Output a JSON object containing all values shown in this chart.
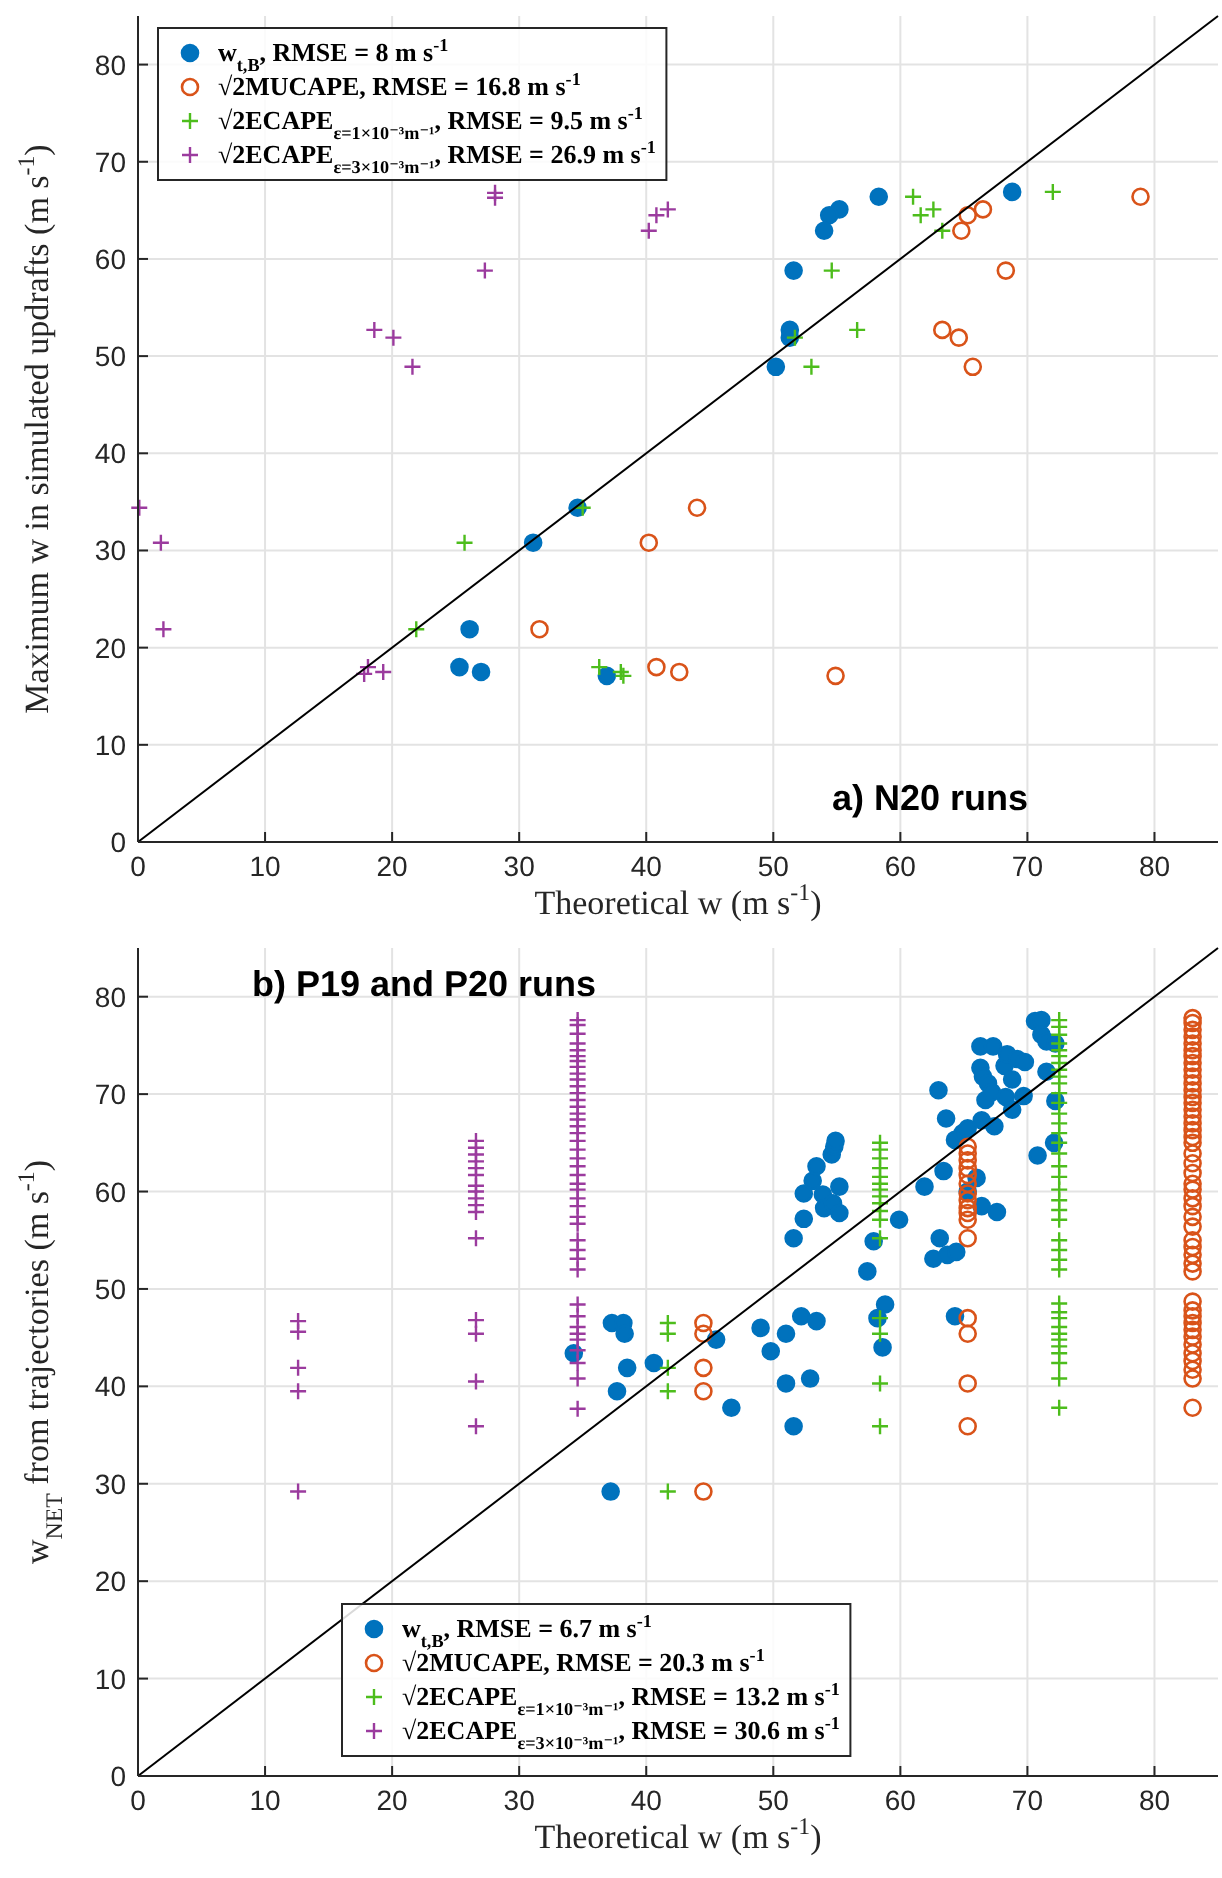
{
  "chart_data": [
    {
      "type": "scatter",
      "xlabel": "Theoretical w (m s$^{-1}$)",
      "ylabel": "Maximum w in simulated updrafts (m s$^{-1}$)",
      "annotations": [
        "a) N20 runs"
      ],
      "xlim": [
        0,
        85
      ],
      "ylim": [
        0,
        85
      ],
      "xticks": [
        0,
        10,
        20,
        30,
        40,
        50,
        60,
        70,
        80
      ],
      "yticks": [
        0,
        10,
        20,
        30,
        40,
        50,
        60,
        70,
        80
      ],
      "grid": true,
      "legend": "top left",
      "series": [
        {
          "name": "w$_{t,B}$, RMSE = 8 m s$^{-1}$",
          "color": "#0072bd",
          "marker": "circle",
          "x": [
            58.3,
            68.8,
            55.2,
            54.4,
            54.0,
            51.6,
            51.3,
            51.3,
            50.2,
            34.6,
            31.1,
            26.1,
            25.3,
            27.0,
            36.9
          ],
          "values": [
            66.4,
            66.9,
            65.1,
            64.5,
            62.9,
            58.8,
            52.7,
            51.9,
            48.9,
            34.4,
            30.8,
            21.9,
            18.0,
            17.5,
            17.1
          ]
        },
        {
          "name": "√2MUCAPE, RMSE = 16.8 m s$^{-1}$",
          "color": "#d95319",
          "marker": "circle-open",
          "x": [
            78.9,
            66.5,
            65.3,
            64.8,
            68.3,
            63.3,
            64.6,
            65.7,
            44.0,
            40.2,
            31.6,
            40.8,
            42.6,
            54.9
          ],
          "values": [
            66.4,
            65.1,
            64.5,
            62.9,
            58.8,
            52.7,
            51.9,
            48.9,
            34.4,
            30.8,
            21.9,
            18.0,
            17.5,
            17.1
          ]
        },
        {
          "name": "√2ECAPE$_{ε=1×10⁻³m⁻¹}$, RMSE = 9.5 m s$^{-1}$",
          "color": "#4dbd1c",
          "marker": "cross",
          "x": [
            61.0,
            72.0,
            62.6,
            61.6,
            63.3,
            54.6,
            56.6,
            51.7,
            53.0,
            35.0,
            25.7,
            21.9,
            36.3,
            38.0,
            38.2
          ],
          "values": [
            66.4,
            66.9,
            65.1,
            64.5,
            62.9,
            58.8,
            52.7,
            51.9,
            48.9,
            34.4,
            30.8,
            21.9,
            18.0,
            17.5,
            17.1
          ]
        },
        {
          "name": "√2ECAPE$_{ε=3×10⁻³m⁻¹}$, RMSE = 26.9 m s$^{-1}$",
          "color": "#9b3b9e",
          "marker": "cross",
          "x": [
            28.1,
            28.1,
            41.7,
            40.8,
            40.2,
            27.3,
            18.6,
            20.1,
            21.6,
            0.1,
            1.8,
            2.0,
            18.1,
            17.8,
            19.3
          ],
          "values": [
            66.8,
            66.3,
            65.1,
            64.5,
            62.9,
            58.8,
            52.7,
            51.9,
            48.9,
            34.4,
            30.8,
            21.9,
            18.0,
            17.3,
            17.5
          ]
        },
        {
          "type": "line",
          "color": "#000000",
          "marker": "none",
          "x": [
            0,
            85
          ],
          "values": [
            0,
            85
          ]
        }
      ]
    },
    {
      "type": "scatter",
      "xlabel": "Theoretical w (m s$^{-1}$)",
      "ylabel": "w$_{NET}$ from trajectories (m s$^{-1}$)",
      "annotations": [
        "b) P19 and P20 runs"
      ],
      "xlim": [
        0,
        85
      ],
      "ylim": [
        0,
        85
      ],
      "xticks": [
        0,
        10,
        20,
        30,
        40,
        50,
        60,
        70,
        80
      ],
      "yticks": [
        0,
        10,
        20,
        30,
        40,
        50,
        60,
        70,
        80
      ],
      "grid": true,
      "legend": "bottom",
      "series": [
        {
          "name": "w$_{t,B}$, RMSE = 6.7 m s$^{-1}$",
          "color": "#0072bd",
          "marker": "circle",
          "x": [
            34.3,
            37.3,
            38.2,
            38.3,
            38.5,
            37.7,
            40.6,
            37.2,
            45.5,
            46.7,
            49.0,
            49.8,
            51.0,
            51.0,
            51.6,
            52.2,
            52.9,
            53.4,
            51.6,
            52.4,
            52.4,
            53.1,
            53.4,
            53.9,
            54.0,
            54.7,
            55.2,
            55.2,
            54.6,
            54.8,
            54.9,
            57.4,
            57.9,
            59.9,
            58.2,
            58.8,
            58.6,
            61.9,
            62.6,
            63.1,
            63.0,
            63.4,
            63.6,
            63.7,
            64.4,
            64.3,
            64.3,
            64.9,
            65.3,
            65.3,
            66.0,
            66.4,
            67.6,
            66.4,
            66.7,
            66.3,
            66.5,
            66.9,
            67.2,
            66.3,
            67.3,
            67.4,
            68.3,
            68.2,
            68.8,
            68.4,
            68.8,
            69.2,
            69.7,
            69.8,
            70.8,
            70.6,
            71.1,
            71.1,
            71.5,
            72.2,
            71.5,
            72.2,
            72.1
          ],
          "values": [
            43.4,
            46.5,
            46.5,
            45.4,
            41.9,
            39.5,
            42.4,
            29.2,
            44.8,
            37.8,
            46.0,
            43.6,
            45.4,
            40.3,
            35.9,
            47.2,
            40.8,
            46.7,
            55.2,
            57.2,
            59.8,
            61.1,
            62.6,
            59.7,
            58.3,
            58.8,
            60.5,
            57.8,
            63.8,
            64.6,
            65.2,
            51.8,
            54.9,
            57.1,
            47.0,
            48.4,
            44.0,
            60.5,
            53.1,
            55.2,
            70.4,
            62.1,
            67.5,
            53.5,
            53.8,
            47.2,
            65.3,
            66.0,
            66.5,
            60.0,
            61.4,
            58.5,
            57.9,
            67.3,
            69.4,
            72.7,
            71.8,
            71.1,
            70.2,
            74.9,
            74.9,
            66.7,
            69.7,
            72.9,
            71.5,
            74.1,
            68.4,
            73.6,
            69.8,
            73.3,
            63.7,
            77.5,
            77.6,
            76.1,
            75.4,
            75.2,
            72.3,
            69.3,
            65.0
          ]
        },
        {
          "name": "√2MUCAPE, RMSE = 20.3 m s$^{-1}$",
          "color": "#d95319",
          "marker": "circle-open",
          "x": [
            44.5,
            44.5,
            44.5,
            44.5,
            44.5,
            65.3,
            65.3,
            65.3,
            65.3,
            65.3,
            65.3,
            65.3,
            65.3,
            65.3,
            65.3,
            65.3,
            65.3,
            65.3,
            65.3,
            65.3,
            65.3,
            83,
            83,
            83,
            83,
            83,
            83,
            83,
            83,
            83,
            83,
            83,
            83,
            83,
            83,
            83,
            83,
            83,
            83,
            83,
            83,
            83,
            83,
            83,
            83,
            83,
            83,
            83,
            83,
            83,
            83,
            83,
            83,
            83,
            83,
            83,
            83,
            83,
            83,
            83,
            83,
            83,
            83,
            83,
            83,
            83,
            83
          ],
          "values": [
            46.5,
            45.4,
            41.9,
            39.5,
            29.2,
            64.6,
            63.9,
            63.2,
            62.4,
            61.7,
            60.8,
            59.8,
            59.1,
            58.3,
            57.8,
            57.1,
            55.2,
            47.0,
            45.4,
            40.3,
            35.9,
            77.8,
            77.3,
            76.6,
            75.9,
            75.2,
            74.5,
            73.9,
            73.2,
            72.5,
            71.8,
            71.1,
            70.4,
            69.7,
            69.1,
            68.4,
            67.7,
            67.0,
            66.3,
            65.6,
            65.0,
            63.9,
            62.9,
            61.9,
            60.8,
            60.2,
            59.3,
            58.5,
            57.4,
            56.4,
            55.0,
            54.3,
            53.5,
            52.6,
            51.8,
            48.7,
            47.8,
            47.2,
            46.5,
            45.8,
            45.1,
            44.3,
            43.4,
            42.6,
            41.7,
            40.8,
            37.8
          ]
        },
        {
          "name": "√2ECAPE$_{ε=1×10⁻³m⁻¹}$, RMSE = 13.2 m s$^{-1}$",
          "color": "#4dbd1c",
          "marker": "cross",
          "x": [
            41.7,
            41.7,
            41.7,
            41.7,
            41.7,
            58.4,
            58.4,
            58.4,
            58.4,
            58.4,
            58.4,
            58.4,
            58.4,
            58.4,
            58.4,
            58.4,
            58.4,
            58.4,
            58.4,
            58.4,
            58.4,
            72.5,
            72.5,
            72.5,
            72.5,
            72.5,
            72.5,
            72.5,
            72.5,
            72.5,
            72.5,
            72.5,
            72.5,
            72.5,
            72.5,
            72.5,
            72.5,
            72.5,
            72.5,
            72.5,
            72.5,
            72.5,
            72.5,
            72.5,
            72.5,
            72.5,
            72.5,
            72.5,
            72.5,
            72.5,
            72.5,
            72.5,
            72.5,
            72.5,
            72.5,
            72.5,
            72.5,
            72.5,
            72.5
          ],
          "values": [
            46.5,
            45.4,
            41.9,
            39.5,
            29.2,
            65.0,
            64.3,
            63.4,
            62.4,
            61.5,
            60.8,
            60.2,
            59.5,
            58.8,
            58.0,
            57.1,
            55.2,
            47.0,
            45.4,
            40.3,
            35.9,
            77.6,
            76.9,
            76.1,
            75.2,
            74.5,
            73.9,
            73.2,
            72.5,
            71.8,
            71.1,
            70.1,
            69.1,
            68.0,
            67.0,
            66.0,
            65.0,
            63.9,
            62.6,
            61.5,
            60.2,
            59.1,
            58.1,
            57.1,
            55.0,
            54.0,
            53.0,
            52.0,
            48.5,
            47.6,
            47.0,
            46.1,
            45.4,
            44.8,
            44.1,
            43.4,
            42.4,
            40.8,
            37.8
          ]
        },
        {
          "name": "√2ECAPE$_{ε=3×10⁻³m⁻¹}$, RMSE = 30.6 m s$^{-1}$",
          "color": "#9b3b9e",
          "marker": "cross",
          "x": [
            12.6,
            12.6,
            12.6,
            12.6,
            12.6,
            26.6,
            26.6,
            26.6,
            26.6,
            26.6,
            26.6,
            26.6,
            26.6,
            26.6,
            26.6,
            26.6,
            26.6,
            26.6,
            26.6,
            26.6,
            26.6,
            34.6,
            34.6,
            34.6,
            34.6,
            34.6,
            34.6,
            34.6,
            34.6,
            34.6,
            34.6,
            34.6,
            34.6,
            34.6,
            34.6,
            34.6,
            34.6,
            34.6,
            34.6,
            34.6,
            34.6,
            34.6,
            34.6,
            34.6,
            34.6,
            34.6,
            34.6,
            34.6,
            34.6,
            34.6,
            34.6,
            34.6,
            34.6,
            34.6,
            34.6,
            34.6,
            34.6,
            34.6,
            34.6,
            34.6,
            34.6,
            34.6,
            34.6
          ],
          "values": [
            46.7,
            45.6,
            41.9,
            39.5,
            29.2,
            65.2,
            64.5,
            63.8,
            63.1,
            62.4,
            61.7,
            60.6,
            60.0,
            59.3,
            58.6,
            57.9,
            55.2,
            46.8,
            45.4,
            40.5,
            35.9,
            77.6,
            77.1,
            76.2,
            75.2,
            74.5,
            73.9,
            73.4,
            72.8,
            72.1,
            71.5,
            70.8,
            70.1,
            69.4,
            68.7,
            68.0,
            67.4,
            66.7,
            66.0,
            65.2,
            64.3,
            63.4,
            62.6,
            61.7,
            60.8,
            60.2,
            59.3,
            58.5,
            57.4,
            56.7,
            55.0,
            54.0,
            53.1,
            52.0,
            48.4,
            47.2,
            46.1,
            45.4,
            44.8,
            43.7,
            42.4,
            40.8,
            37.7
          ]
        },
        {
          "type": "line",
          "color": "#000000",
          "marker": "none",
          "x": [
            0,
            85
          ],
          "values": [
            0,
            85
          ]
        }
      ]
    }
  ]
}
